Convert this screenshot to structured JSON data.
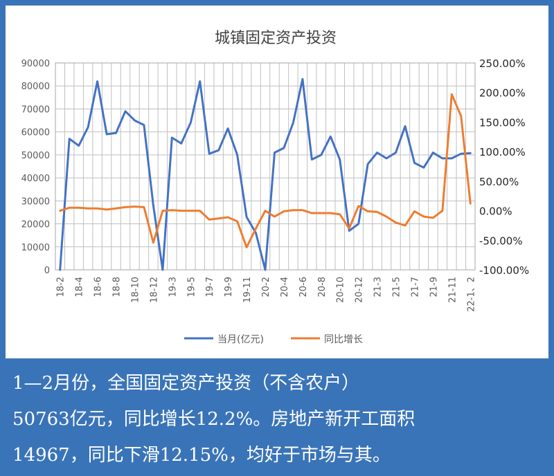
{
  "chart_data": {
    "type": "line",
    "title": "城镇固定资产投资",
    "x": [
      "18-2",
      "18-3",
      "18-4",
      "18-5",
      "18-6",
      "18-7",
      "18-8",
      "18-9",
      "18-10",
      "18-11",
      "18-12",
      "19-2",
      "19-3",
      "19-4",
      "19-5",
      "19-6",
      "19-7",
      "19-8",
      "19-9",
      "19-10",
      "19-11",
      "19-12",
      "20-2",
      "20-3",
      "20-4",
      "20-5",
      "20-6",
      "20-7",
      "20-8",
      "20-9",
      "20-10",
      "20-11",
      "20-12",
      "21-2",
      "21-3",
      "21-4",
      "21-5",
      "21-6",
      "21-7",
      "21-8",
      "21-9",
      "21-10",
      "21-11",
      "21-12",
      "22-1、2"
    ],
    "x_tick_labels": [
      "18-2",
      "18-4",
      "18-6",
      "18-8",
      "18-10",
      "18-12",
      "19-3",
      "19-5",
      "19-7",
      "19-9",
      "19-11",
      "20-2",
      "20-4",
      "20-6",
      "20-8",
      "20-10",
      "20-12",
      "21-3",
      "21-5",
      "21-7",
      "21-9",
      "21-11",
      "22-1、2"
    ],
    "y_left_ticks": [
      "90000",
      "80000",
      "70000",
      "60000",
      "50000",
      "40000",
      "30000",
      "20000",
      "10000",
      "0"
    ],
    "y_right_ticks": [
      "250.00%",
      "200.00%",
      "150.00%",
      "100.00%",
      "50.00%",
      "0.00%",
      "-50.00%",
      "-100.00%"
    ],
    "ylim_left": [
      0,
      90000
    ],
    "ylim_right": [
      -100,
      250
    ],
    "grid": true,
    "legend_position": "bottom",
    "series": [
      {
        "name": "当月(亿元)",
        "axis": "left",
        "color": "#4472c4",
        "values": [
          0,
          57000,
          54000,
          62000,
          82000,
          59000,
          59500,
          69000,
          65000,
          63000,
          28000,
          0,
          57500,
          55000,
          64000,
          82000,
          50500,
          52000,
          61500,
          50000,
          23000,
          16000,
          0,
          51000,
          53000,
          64000,
          83000,
          48000,
          50000,
          58000,
          48000,
          17000,
          20000,
          46000,
          51000,
          48500,
          51000,
          62500,
          46500,
          44500,
          51000,
          48500,
          48500,
          50500,
          50763
        ]
      },
      {
        "name": "同比增长",
        "axis": "right",
        "color": "#ed7d31",
        "values": [
          0,
          5,
          5,
          4,
          4,
          2,
          4,
          6,
          7,
          6,
          -54,
          0,
          1,
          0,
          0,
          0,
          -15,
          -13,
          -11,
          -18,
          -62,
          -30,
          0,
          -10,
          -1,
          1,
          1,
          -4,
          -4,
          -4,
          -6,
          -30,
          8,
          -1,
          -2,
          -10,
          -20,
          -25,
          -1,
          -10,
          -12,
          0,
          197,
          160,
          12.2
        ]
      }
    ]
  },
  "caption": {
    "line1": "1—2月份，全国固定资产投资（不含农户）",
    "line2": "50763亿元，同比增长12.2%。房地产新开工面积",
    "line3": "14967，同比下滑12.15%，均好于市场与其。"
  }
}
